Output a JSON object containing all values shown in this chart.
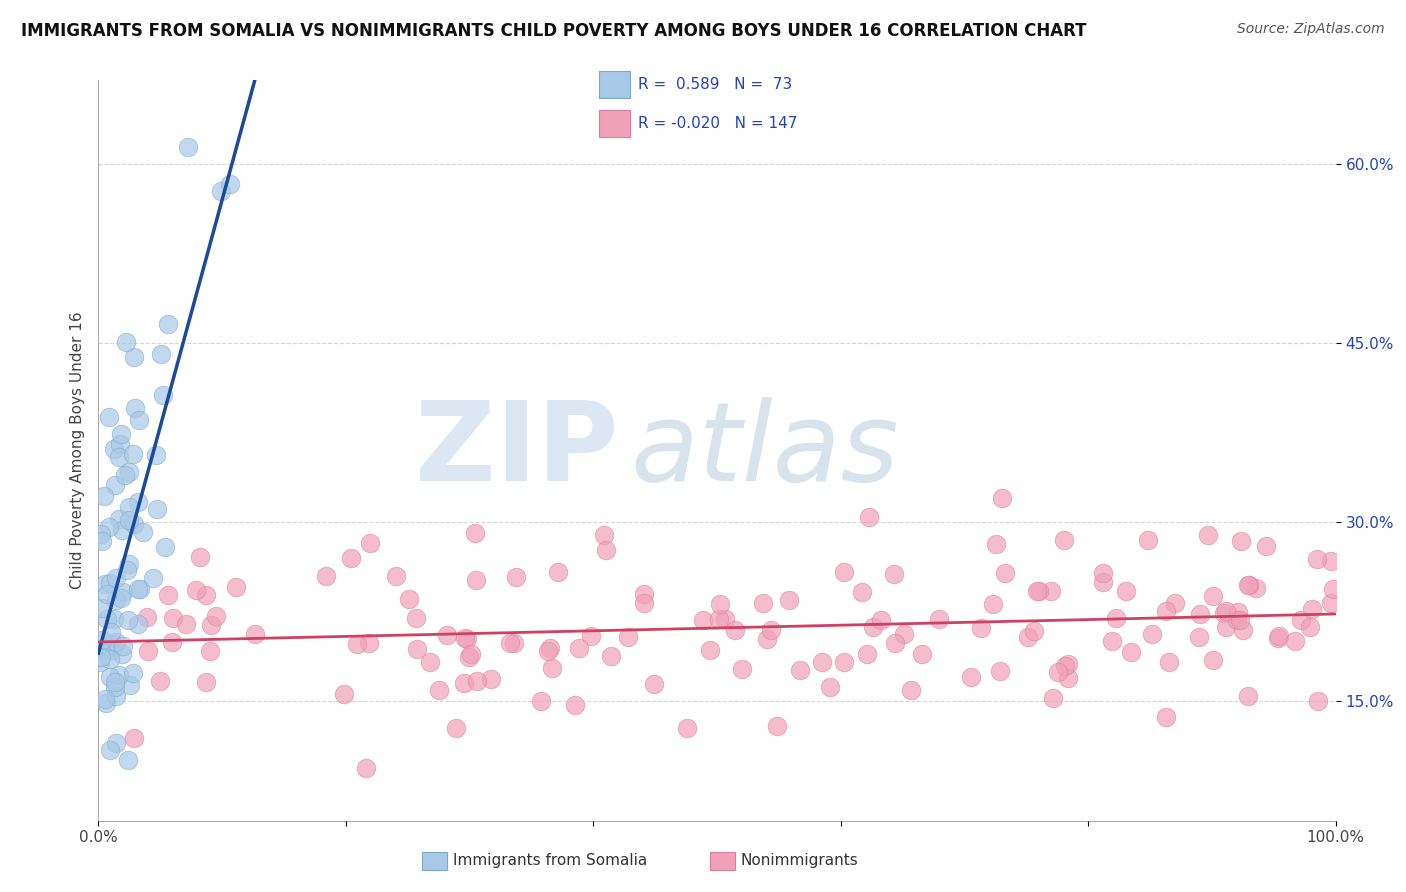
{
  "title": "IMMIGRANTS FROM SOMALIA VS NONIMMIGRANTS CHILD POVERTY AMONG BOYS UNDER 16 CORRELATION CHART",
  "source": "Source: ZipAtlas.com",
  "ylabel": "Child Poverty Among Boys Under 16",
  "xlim": [
    0,
    1.0
  ],
  "ylim": [
    0.05,
    0.67
  ],
  "xticks": [
    0.0,
    0.2,
    0.4,
    0.6,
    0.8,
    1.0
  ],
  "xtick_labels": [
    "0.0%",
    "",
    "",
    "",
    "",
    "100.0%"
  ],
  "yticks": [
    0.15,
    0.3,
    0.45,
    0.6
  ],
  "ytick_labels": [
    "15.0%",
    "30.0%",
    "45.0%",
    "60.0%"
  ],
  "R_blue": 0.589,
  "N_blue": 73,
  "R_pink": -0.02,
  "N_pink": 147,
  "blue_color": "#a8c8e8",
  "blue_edge_color": "#7aaac8",
  "blue_line_color": "#1a4a9a",
  "pink_color": "#f0a0b8",
  "pink_edge_color": "#d880a0",
  "pink_line_color": "#d04060",
  "watermark_zip": "ZIP",
  "watermark_atlas": "atlas",
  "watermark_color_zip": "#c0d4e8",
  "watermark_color_atlas": "#b0c8d8",
  "grid_color": "#cccccc",
  "legend_R_color": "#2244bb",
  "legend_label_blue": "Immigrants from Somalia",
  "legend_label_pink": "Nonimmigrants"
}
